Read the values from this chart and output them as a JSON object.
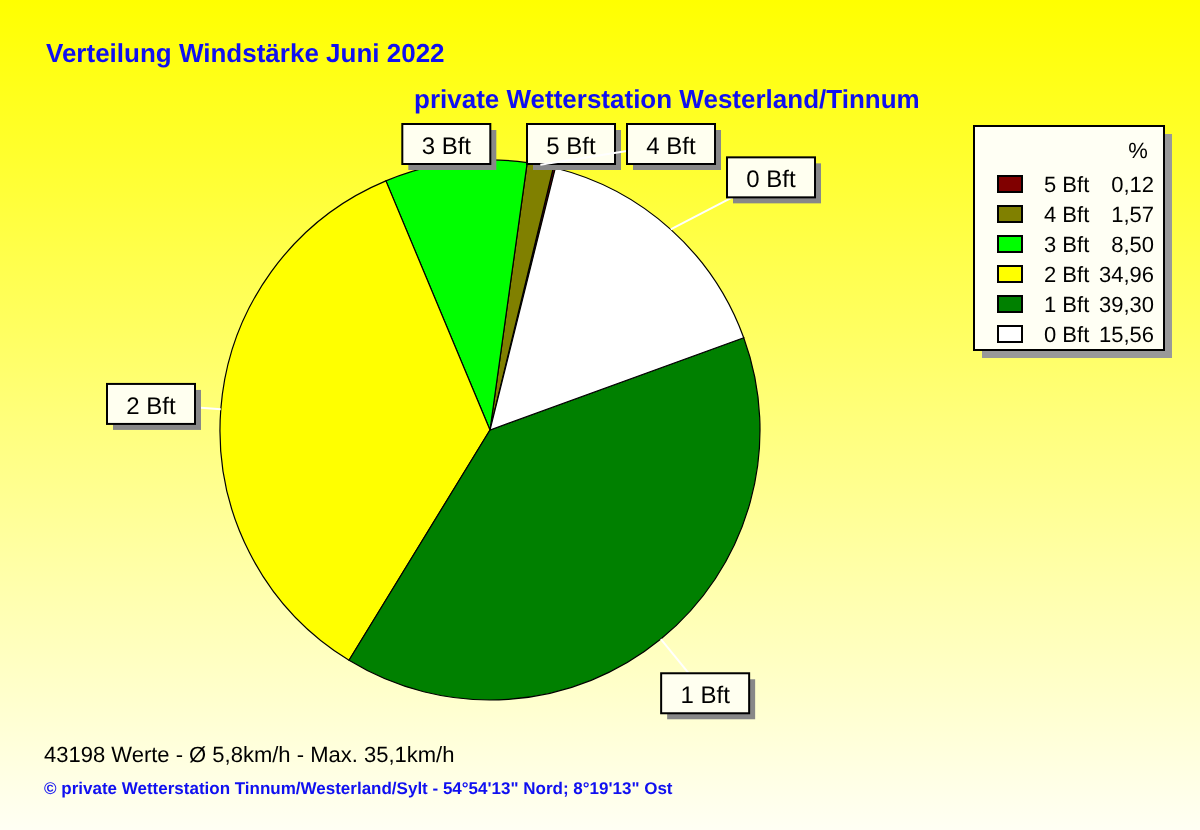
{
  "chart_data": {
    "type": "pie",
    "title": "Verteilung Windstärke  Juni 2022",
    "subtitle": "private Wetterstation Westerland/Tinnum",
    "categories": [
      "5 Bft",
      "4 Bft",
      "3 Bft",
      "2 Bft",
      "1 Bft",
      "0 Bft"
    ],
    "values": [
      0.12,
      1.57,
      8.5,
      34.96,
      39.3,
      15.56
    ],
    "value_labels": [
      "0,12",
      "1,57",
      "8,50",
      "34,96",
      "39,30",
      "15,56"
    ],
    "colors": [
      "#800000",
      "#808000",
      "#00ff00",
      "#ffff00",
      "#008000",
      "#ffffff"
    ],
    "legend": "top right",
    "legend_title": "%",
    "annotations": [
      "43198 Werte   -   Ø 5,8km/h  -  Max. 35,1km/h",
      "© private Wetterstation Tinnum/Westerland/Sylt  -  54°54'13\" Nord; 8°19'13\" Ost"
    ]
  }
}
